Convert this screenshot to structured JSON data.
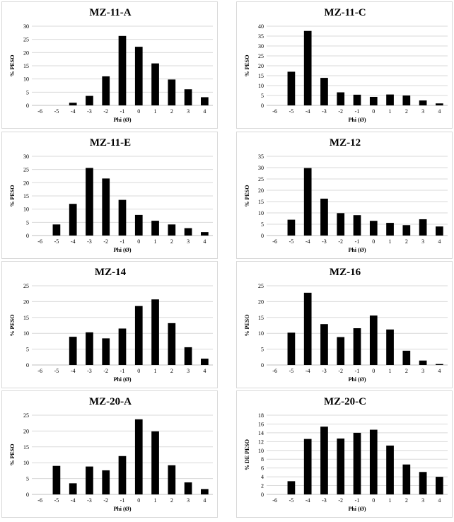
{
  "chart_data": [
    {
      "type": "bar",
      "title": "MZ-11-A",
      "xlabel": "Phi (Ø)",
      "ylabel": "% PESO",
      "categories": [
        "-6",
        "-5",
        "-4",
        "-3",
        "-2",
        "-1",
        "0",
        "1",
        "2",
        "3",
        "4"
      ],
      "values": [
        0,
        0,
        1,
        3.6,
        11,
        26.3,
        22.2,
        15.9,
        9.8,
        6.1,
        3.1
      ],
      "ylim": [
        0,
        30
      ],
      "yticks": [
        "0",
        "5",
        "10",
        "15",
        "20",
        "25",
        "30"
      ]
    },
    {
      "type": "bar",
      "title": "MZ-11-C",
      "xlabel": "Phi (Ø)",
      "ylabel": "% PESO",
      "categories": [
        "-6",
        "-5",
        "-4",
        "-3",
        "-2",
        "-1",
        "0",
        "1",
        "2",
        "3",
        "4"
      ],
      "values": [
        0,
        17,
        37.6,
        13.9,
        6.6,
        5.4,
        4.3,
        5.5,
        5,
        2.5,
        1
      ],
      "ylim": [
        0,
        40
      ],
      "yticks": [
        "0",
        "5",
        "10",
        "15",
        "20",
        "25",
        "30",
        "35",
        "40"
      ]
    },
    {
      "type": "bar",
      "title": "MZ-11-E",
      "xlabel": "Phi (Ø)",
      "ylabel": "% PESO",
      "categories": [
        "-6",
        "-5",
        "-4",
        "-3",
        "-2",
        "-1",
        "0",
        "1",
        "2",
        "3",
        "4"
      ],
      "values": [
        0,
        4.2,
        12,
        25.6,
        21.6,
        13.5,
        7.8,
        5.6,
        4.2,
        2.8,
        1.3
      ],
      "ylim": [
        0,
        30
      ],
      "yticks": [
        "0",
        "5",
        "10",
        "15",
        "20",
        "25",
        "30"
      ]
    },
    {
      "type": "bar",
      "title": "MZ-12",
      "xlabel": "Phi (Ø)",
      "ylabel": "% PESO",
      "categories": [
        "-6",
        "-5",
        "-4",
        "-3",
        "-2",
        "-1",
        "0",
        "1",
        "2",
        "3",
        "4"
      ],
      "values": [
        0,
        7,
        29.8,
        16.3,
        9.9,
        9,
        6.5,
        5.6,
        4.6,
        7.2,
        4
      ],
      "ylim": [
        0,
        35
      ],
      "yticks": [
        "0",
        "5",
        "10",
        "15",
        "20",
        "25",
        "30",
        "35"
      ]
    },
    {
      "type": "bar",
      "title": "MZ-14",
      "xlabel": "Phi (Ø)",
      "ylabel": "% PESO",
      "categories": [
        "-6",
        "-5",
        "-4",
        "-3",
        "-2",
        "-1",
        "0",
        "1",
        "2",
        "3",
        "4"
      ],
      "values": [
        0,
        0,
        8.9,
        10.3,
        8.4,
        11.5,
        18.6,
        20.7,
        13.2,
        5.6,
        2
      ],
      "ylim": [
        0,
        25
      ],
      "yticks": [
        "0",
        "5",
        "10",
        "15",
        "20",
        "25"
      ]
    },
    {
      "type": "bar",
      "title": "MZ-16",
      "xlabel": "Phi (Ø)",
      "ylabel": "% PESO",
      "categories": [
        "-6",
        "-5",
        "-4",
        "-3",
        "-2",
        "-1",
        "0",
        "1",
        "2",
        "3",
        "4"
      ],
      "values": [
        0,
        10.2,
        22.8,
        12.9,
        8.8,
        11.6,
        15.6,
        11.2,
        4.5,
        1.4,
        0.3
      ],
      "ylim": [
        0,
        25
      ],
      "yticks": [
        "0",
        "5",
        "10",
        "15",
        "20",
        "25"
      ]
    },
    {
      "type": "bar",
      "title": "MZ-20-A",
      "xlabel": "Phi (Ø)",
      "ylabel": "% PESO",
      "categories": [
        "-6",
        "-5",
        "-4",
        "-3",
        "-2",
        "-1",
        "0",
        "1",
        "2",
        "3",
        "4"
      ],
      "values": [
        0,
        9,
        3.5,
        8.8,
        7.6,
        12.1,
        23.7,
        19.9,
        9.2,
        3.8,
        1.7
      ],
      "ylim": [
        0,
        25
      ],
      "yticks": [
        "0",
        "5",
        "10",
        "15",
        "20",
        "25"
      ]
    },
    {
      "type": "bar",
      "title": "MZ-20-C",
      "xlabel": "Phi (Ø)",
      "ylabel": "% DE PESO",
      "categories": [
        "-6",
        "-5",
        "-4",
        "-3",
        "-2",
        "-1",
        "0",
        "1",
        "2",
        "3",
        "4"
      ],
      "values": [
        0,
        3,
        12.6,
        15.4,
        12.7,
        14,
        14.7,
        11.1,
        6.8,
        5.1,
        4
      ],
      "ylim": [
        0,
        18
      ],
      "yticks": [
        "0",
        "2",
        "4",
        "6",
        "8",
        "10",
        "12",
        "14",
        "16",
        "18"
      ]
    }
  ]
}
